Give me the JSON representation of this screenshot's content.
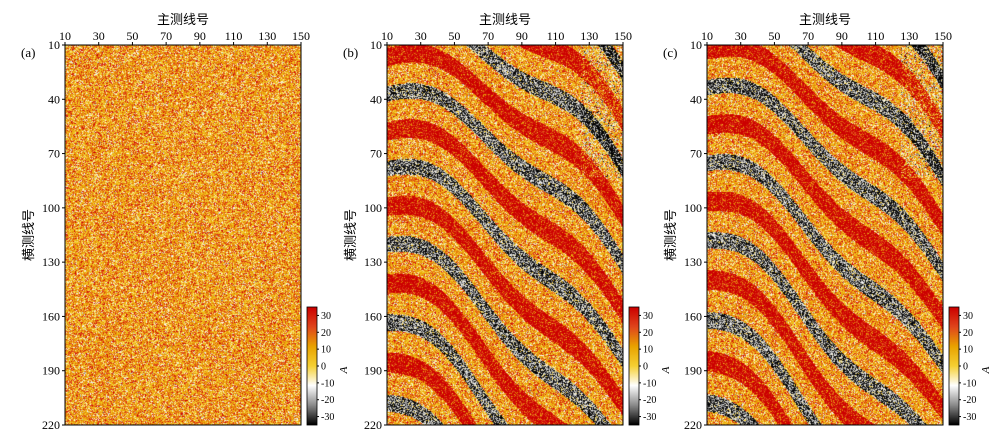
{
  "chart_data": [
    {
      "type": "heatmap",
      "panel_label": "(a)",
      "xlabel": "主测线号",
      "ylabel": "横测线号",
      "x_ticks": [
        10,
        30,
        50,
        70,
        90,
        110,
        130,
        150
      ],
      "y_ticks": [
        10,
        40,
        70,
        100,
        130,
        160,
        190,
        220
      ],
      "xlim": [
        10,
        150
      ],
      "ylim": [
        10,
        220
      ],
      "colorbar": {
        "label": "A",
        "ticks": [
          30,
          20,
          10,
          0,
          -10,
          -20,
          -30
        ],
        "range": [
          -35,
          35
        ]
      },
      "pattern": "random noise (no coherent structure)"
    },
    {
      "type": "heatmap",
      "panel_label": "(b)",
      "xlabel": "主测线号",
      "ylabel": "横测线号",
      "x_ticks": [
        10,
        30,
        50,
        70,
        90,
        110,
        130,
        150
      ],
      "y_ticks": [
        10,
        40,
        70,
        100,
        130,
        160,
        190,
        220
      ],
      "xlim": [
        10,
        150
      ],
      "ylim": [
        10,
        220
      ],
      "colorbar": {
        "label": "A",
        "ticks": [
          30,
          20,
          10,
          0,
          -10,
          -20,
          -30
        ],
        "range": [
          -35,
          35
        ]
      },
      "pattern": "curved stripe amplitude anomalies over noise"
    },
    {
      "type": "heatmap",
      "panel_label": "(c)",
      "xlabel": "主测线号",
      "ylabel": "横测线号",
      "x_ticks": [
        10,
        30,
        50,
        70,
        90,
        110,
        130,
        150
      ],
      "y_ticks": [
        10,
        40,
        70,
        100,
        130,
        160,
        190,
        220
      ],
      "xlim": [
        10,
        150
      ],
      "ylim": [
        10,
        220
      ],
      "colorbar": {
        "label": "A",
        "ticks": [
          30,
          20,
          10,
          0,
          -10,
          -20,
          -30
        ],
        "range": [
          -35,
          35
        ]
      },
      "pattern": "curved stripe amplitude anomalies over noise (variant)"
    }
  ],
  "colors": {
    "colormap": [
      "#000000",
      "#8c8c8c",
      "#ffffff",
      "#f5d033",
      "#e9a300",
      "#e0451c",
      "#cc0000"
    ]
  }
}
